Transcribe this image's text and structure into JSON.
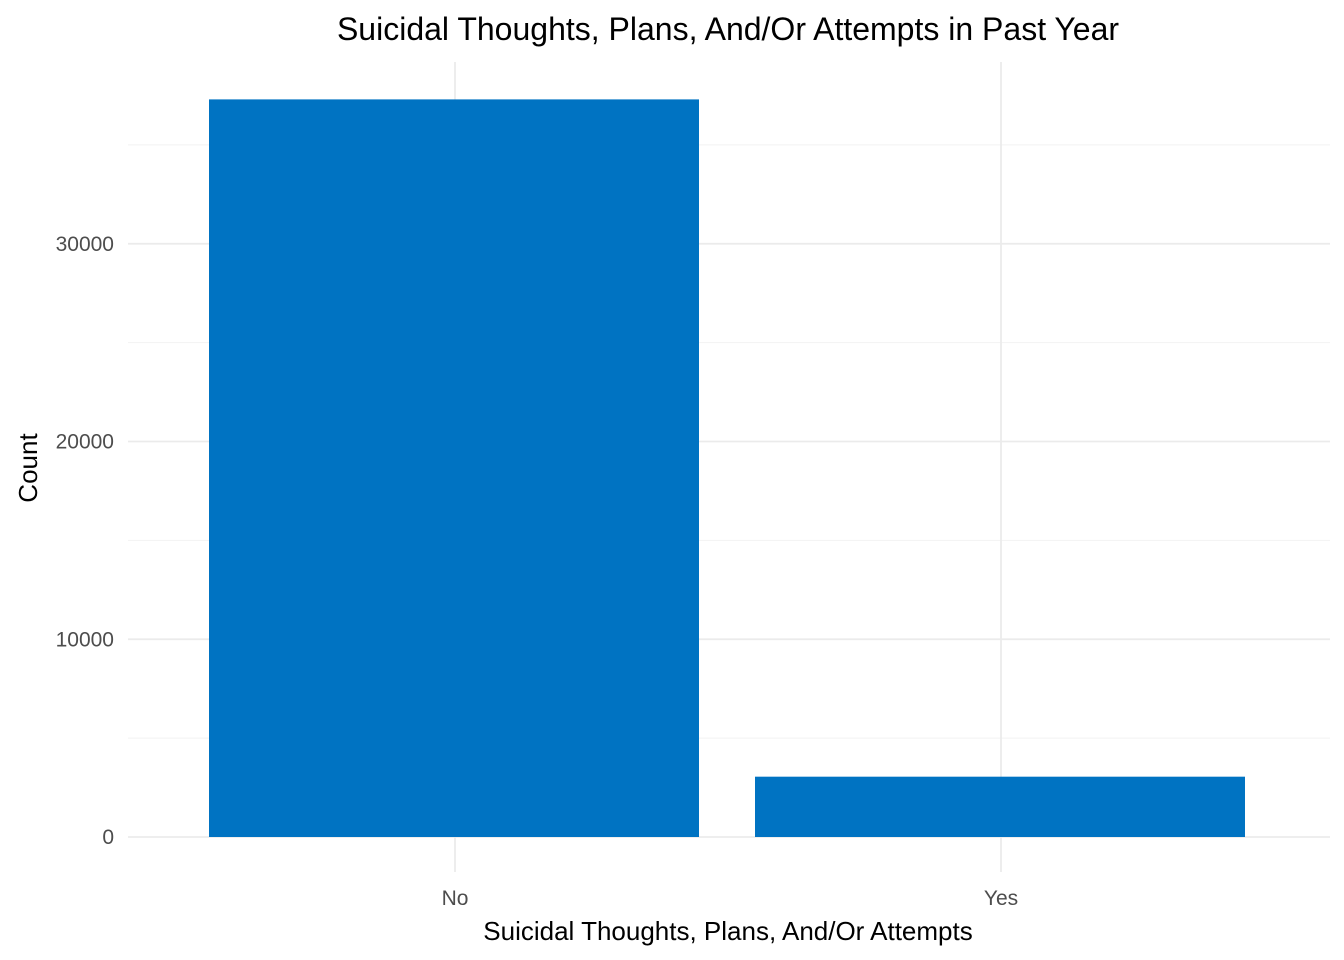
{
  "chart_data": {
    "type": "bar",
    "title": "Suicidal Thoughts, Plans, And/Or Attempts in Past Year",
    "xlabel": "Suicidal Thoughts, Plans, And/Or Attempts",
    "ylabel": "Count",
    "categories": [
      "No",
      "Yes"
    ],
    "values": [
      37300,
      3050
    ],
    "ylim": [
      0,
      40000
    ],
    "yticks": [
      0,
      10000,
      20000,
      30000
    ],
    "ytick_labels": [
      "0",
      "10000",
      "20000",
      "30000"
    ],
    "grid": true,
    "legend": "none",
    "bar_color": "#0073C2"
  }
}
